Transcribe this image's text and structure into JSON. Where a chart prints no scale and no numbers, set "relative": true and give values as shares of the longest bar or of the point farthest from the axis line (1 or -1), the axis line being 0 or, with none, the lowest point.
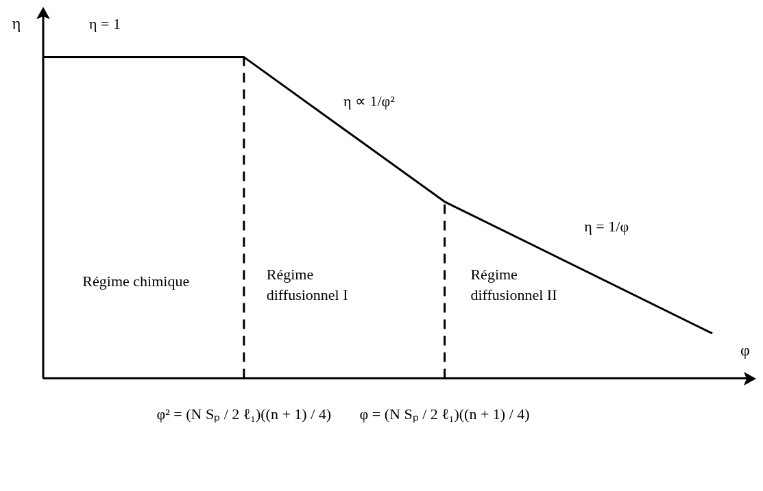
{
  "chart_data": {
    "type": "line",
    "relative": true,
    "xlabel": "φ",
    "ylabel": "η",
    "categories": [
      null,
      null,
      null,
      "φ² = (N Sₚ / 2 ℓ₁)((n + 1) / 4)",
      null,
      null,
      "φ = (N Sₚ / 2 ℓ₁)((n + 1) / 4)",
      null,
      null,
      null,
      null
    ],
    "series": [
      {
        "color": "#000000",
        "values": [
          1,
          null,
          null,
          1,
          null,
          null,
          0.55,
          null,
          null,
          null,
          0.14
        ]
      }
    ],
    "ref_lines": [
      {
        "axis": "x",
        "value": "φ² = (N Sₚ / 2 ℓ₁)((n + 1) / 4)",
        "line_style": "dashed",
        "color": "#000000"
      },
      {
        "axis": "x",
        "value": "φ = (N Sₚ / 2 ℓ₁)((n + 1) / 4)",
        "line_style": "dashed",
        "color": "#000000"
      }
    ],
    "annotations": [
      "η = 1",
      "η ∝ 1/φ²",
      "η = 1/φ",
      "Régime chimique",
      "Régime\ndiffusionnel I",
      "Régime\ndiffusionnel II"
    ],
    "grid": false,
    "legend": false,
    "marker": "none",
    "line_style": "solid"
  }
}
